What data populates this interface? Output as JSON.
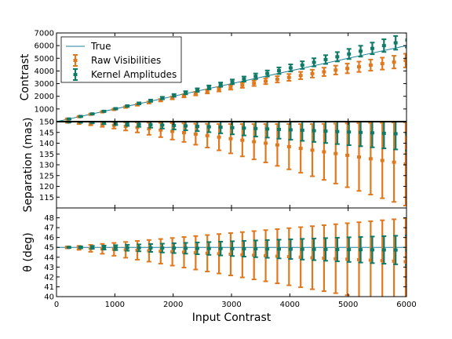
{
  "chart_data": {
    "type": "errorbar",
    "xlabel": "Input Contrast",
    "xlim": [
      0,
      6000
    ],
    "x_ticks": [
      "0",
      "1000",
      "2000",
      "3000",
      "4000",
      "5000",
      "6000"
    ],
    "legend": {
      "placement": "upper-left",
      "entries": [
        "True",
        "Raw Visibilities",
        "Kernel Amplitudes"
      ]
    },
    "colors": {
      "true": "#1f7f9a",
      "raw": "#e0791e",
      "kernel": "#0f7a66"
    },
    "x": [
      200,
      400,
      600,
      800,
      1000,
      1200,
      1400,
      1600,
      1800,
      2000,
      2200,
      2400,
      2600,
      2800,
      3000,
      3200,
      3400,
      3600,
      3800,
      4000,
      4200,
      4400,
      4600,
      4800,
      5000,
      5200,
      5400,
      5600,
      5800,
      6000
    ],
    "panels": [
      {
        "ylabel": "Contrast",
        "ylim": [
          0,
          7000
        ],
        "y_ticks": [
          "0",
          "1000",
          "2000",
          "3000",
          "4000",
          "5000",
          "6000",
          "7000"
        ],
        "true_line": {
          "x": [
            0,
            6000
          ],
          "y": [
            0,
            6000
          ]
        },
        "series": [
          {
            "key": "raw",
            "name": "Raw Visibilities",
            "y": [
              200,
              390,
              580,
              770,
              960,
              1150,
              1330,
              1510,
              1690,
              1870,
              2040,
              2210,
              2380,
              2550,
              2710,
              2870,
              3030,
              3190,
              3340,
              3490,
              3640,
              3790,
              3930,
              4070,
              4200,
              4330,
              4460,
              4580,
              4700,
              4820
            ],
            "err": [
              15,
              25,
              30,
              40,
              50,
              60,
              70,
              80,
              95,
              110,
              125,
              140,
              155,
              170,
              185,
              200,
              215,
              230,
              250,
              270,
              290,
              310,
              330,
              350,
              380,
              410,
              440,
              470,
              500,
              540
            ]
          },
          {
            "key": "kernel",
            "name": "Kernel Amplitudes",
            "y": [
              205,
              410,
              610,
              815,
              1020,
              1230,
              1440,
              1650,
              1860,
              2070,
              2280,
              2490,
              2700,
              2920,
              3140,
              3360,
              3580,
              3800,
              4020,
              4240,
              4460,
              4680,
              4900,
              5120,
              5340,
              5560,
              5780,
              6000,
              6220,
              6440
            ],
            "err": [
              20,
              30,
              40,
              50,
              60,
              70,
              80,
              90,
              100,
              110,
              125,
              140,
              155,
              170,
              185,
              200,
              220,
              240,
              260,
              280,
              300,
              320,
              345,
              370,
              400,
              430,
              460,
              500,
              540,
              580
            ]
          }
        ]
      },
      {
        "ylabel": "Separation (mas)",
        "ylim": [
          110,
          150
        ],
        "y_ticks": [
          "115",
          "120",
          "125",
          "130",
          "135",
          "140",
          "145",
          "150"
        ],
        "true_line": {
          "x": [
            0,
            6000
          ],
          "y": [
            150,
            150
          ]
        },
        "series": [
          {
            "key": "raw",
            "name": "Raw Visibilities",
            "y": [
              149.8,
              149.5,
              149.2,
              148.8,
              148.3,
              147.8,
              147.3,
              146.7,
              146.1,
              145.5,
              144.9,
              144.2,
              143.5,
              142.8,
              142.1,
              141.4,
              140.7,
              140.0,
              139.2,
              138.4,
              137.6,
              136.8,
              136.0,
              135.2,
              134.4,
              133.6,
              132.8,
              132.0,
              131.2,
              130.4
            ],
            "err": [
              0.3,
              0.6,
              0.9,
              1.2,
              1.5,
              1.9,
              2.3,
              2.8,
              3.3,
              3.8,
              4.3,
              4.9,
              5.5,
              6.1,
              6.8,
              7.5,
              8.2,
              8.9,
              9.7,
              10.5,
              11.3,
              12.1,
              13.0,
              13.9,
              14.8,
              15.7,
              16.6,
              17.5,
              18.4,
              19.3
            ]
          },
          {
            "key": "kernel",
            "name": "Kernel Amplitudes",
            "y": [
              149.9,
              149.8,
              149.6,
              149.4,
              149.2,
              149.0,
              148.8,
              148.6,
              148.4,
              148.2,
              148.0,
              147.8,
              147.6,
              147.4,
              147.2,
              147.0,
              146.8,
              146.6,
              146.4,
              146.2,
              146.0,
              145.8,
              145.6,
              145.4,
              145.2,
              145.0,
              144.8,
              144.6,
              144.4,
              144.2
            ],
            "err": [
              0.2,
              0.3,
              0.4,
              0.6,
              0.8,
              1.0,
              1.2,
              1.4,
              1.6,
              1.8,
              2.0,
              2.2,
              2.5,
              2.8,
              3.1,
              3.4,
              3.7,
              4.0,
              4.3,
              4.6,
              4.9,
              5.2,
              5.5,
              5.8,
              6.1,
              6.4,
              6.7,
              7.0,
              7.3,
              7.6
            ]
          }
        ]
      },
      {
        "ylabel": "θ (deg)",
        "ylim": [
          40,
          49
        ],
        "y_ticks": [
          "40",
          "41",
          "42",
          "43",
          "44",
          "45",
          "46",
          "47",
          "48"
        ],
        "true_line": {
          "x": [
            0,
            6000
          ],
          "y": [
            45,
            45
          ]
        },
        "series": [
          {
            "key": "raw",
            "name": "Raw Visibilities",
            "y": [
              45.0,
              44.95,
              44.9,
              44.85,
              44.8,
              44.75,
              44.7,
              44.65,
              44.6,
              44.55,
              44.5,
              44.45,
              44.4,
              44.35,
              44.3,
              44.25,
              44.2,
              44.15,
              44.1,
              44.05,
              44.0,
              43.95,
              43.9,
              43.85,
              43.8,
              43.75,
              43.7,
              43.65,
              43.6,
              43.55
            ],
            "err": [
              0.1,
              0.2,
              0.35,
              0.5,
              0.65,
              0.8,
              0.95,
              1.1,
              1.25,
              1.4,
              1.55,
              1.7,
              1.85,
              2.0,
              2.15,
              2.3,
              2.45,
              2.6,
              2.75,
              2.9,
              3.05,
              3.2,
              3.35,
              3.5,
              3.65,
              3.8,
              3.95,
              4.1,
              4.25,
              4.4
            ]
          },
          {
            "key": "kernel",
            "name": "Kernel Amplitudes",
            "y": [
              45.0,
              45.0,
              45.0,
              44.98,
              44.97,
              44.96,
              44.95,
              44.94,
              44.93,
              44.92,
              44.91,
              44.9,
              44.89,
              44.88,
              44.87,
              44.86,
              44.85,
              44.84,
              44.83,
              44.82,
              44.81,
              44.8,
              44.79,
              44.78,
              44.77,
              44.76,
              44.75,
              44.74,
              44.73,
              44.72
            ],
            "err": [
              0.05,
              0.1,
              0.15,
              0.2,
              0.25,
              0.3,
              0.35,
              0.4,
              0.45,
              0.5,
              0.55,
              0.6,
              0.65,
              0.7,
              0.75,
              0.8,
              0.85,
              0.9,
              0.95,
              1.0,
              1.05,
              1.1,
              1.15,
              1.2,
              1.25,
              1.3,
              1.35,
              1.4,
              1.45,
              1.5
            ]
          }
        ]
      }
    ]
  }
}
